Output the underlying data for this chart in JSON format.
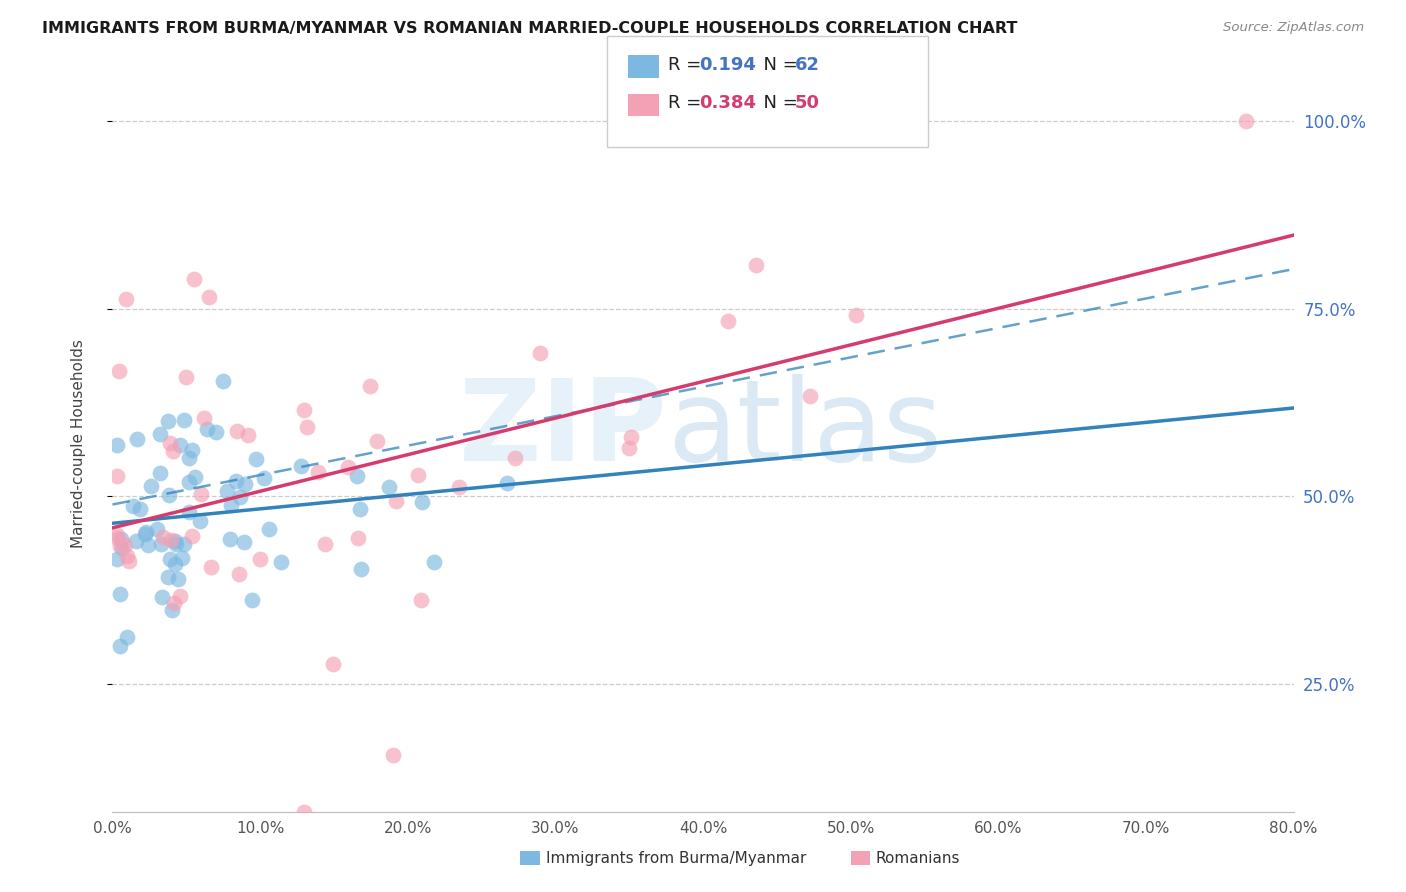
{
  "title": "IMMIGRANTS FROM BURMA/MYANMAR VS ROMANIAN MARRIED-COUPLE HOUSEHOLDS CORRELATION CHART",
  "source": "Source: ZipAtlas.com",
  "ylabel": "Married-couple Households",
  "xlim": [
    0.0,
    0.8
  ],
  "ylim": [
    0.08,
    1.06
  ],
  "y_ticks": [
    0.25,
    0.5,
    0.75,
    1.0
  ],
  "y_tick_labels": [
    "25.0%",
    "50.0%",
    "75.0%",
    "100.0%"
  ],
  "x_ticks": [
    0.0,
    0.1,
    0.2,
    0.3,
    0.4,
    0.5,
    0.6,
    0.7,
    0.8
  ],
  "x_tick_labels": [
    "0.0%",
    "10.0%",
    "20.0%",
    "30.0%",
    "40.0%",
    "50.0%",
    "60.0%",
    "70.0%",
    "80.0%"
  ],
  "color_blue": "#7db8e0",
  "color_pink": "#f4a0b5",
  "color_blue_line": "#3182bd",
  "color_pink_line": "#d63b6e",
  "color_blue_r": "#4472C4",
  "color_pink_r": "#d63b6e",
  "legend_r_blue": "0.194",
  "legend_n_blue": "62",
  "legend_r_pink": "0.384",
  "legend_n_pink": "50",
  "legend_label_blue": "Immigrants from Burma/Myanmar",
  "legend_label_pink": "Romanians"
}
